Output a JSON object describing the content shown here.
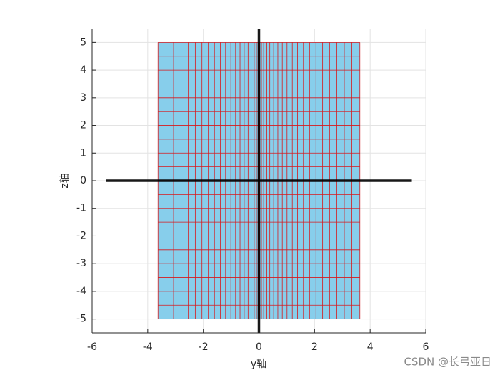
{
  "chart_data": {
    "type": "mesh",
    "xlabel": "y轴",
    "ylabel": "z轴",
    "xlim": [
      -6,
      6
    ],
    "ylim": [
      -5.5,
      5.5
    ],
    "xticks": [
      -6,
      -4,
      -2,
      0,
      2,
      4,
      6
    ],
    "yticks": [
      -5,
      -4,
      -3,
      -2,
      -1,
      0,
      1,
      2,
      3,
      4,
      5
    ],
    "grid": true,
    "mesh": {
      "face_color": "#87ceeb",
      "edge_color": "#d7191c",
      "y": [
        -3.63,
        -3.34,
        -3.07,
        -2.8,
        -2.54,
        -2.29,
        -2.05,
        -1.82,
        -1.6,
        -1.39,
        -1.2,
        -1.01,
        -0.84,
        -0.68,
        -0.53,
        -0.39,
        -0.28,
        -0.17,
        -0.09,
        -0.03,
        0,
        0.03,
        0.09,
        0.17,
        0.28,
        0.39,
        0.53,
        0.68,
        0.84,
        1.01,
        1.2,
        1.39,
        1.6,
        1.82,
        2.05,
        2.29,
        2.54,
        2.8,
        3.07,
        3.34,
        3.63
      ],
      "z": [
        -5,
        -4.5,
        -4,
        -3.5,
        -3,
        -2.5,
        -2,
        -1.5,
        -1,
        -0.5,
        0,
        0.5,
        1,
        1.5,
        2,
        2.5,
        3,
        3.5,
        4,
        4.5,
        5
      ]
    },
    "axis_lines": [
      {
        "color": "#000000",
        "x": [
          -5.5,
          5.5
        ],
        "y": [
          0,
          0
        ]
      },
      {
        "color": "#000000",
        "x": [
          0,
          0
        ],
        "y": [
          -5.5,
          5.5
        ]
      }
    ],
    "watermark": "CSDN @长弓亚日"
  }
}
